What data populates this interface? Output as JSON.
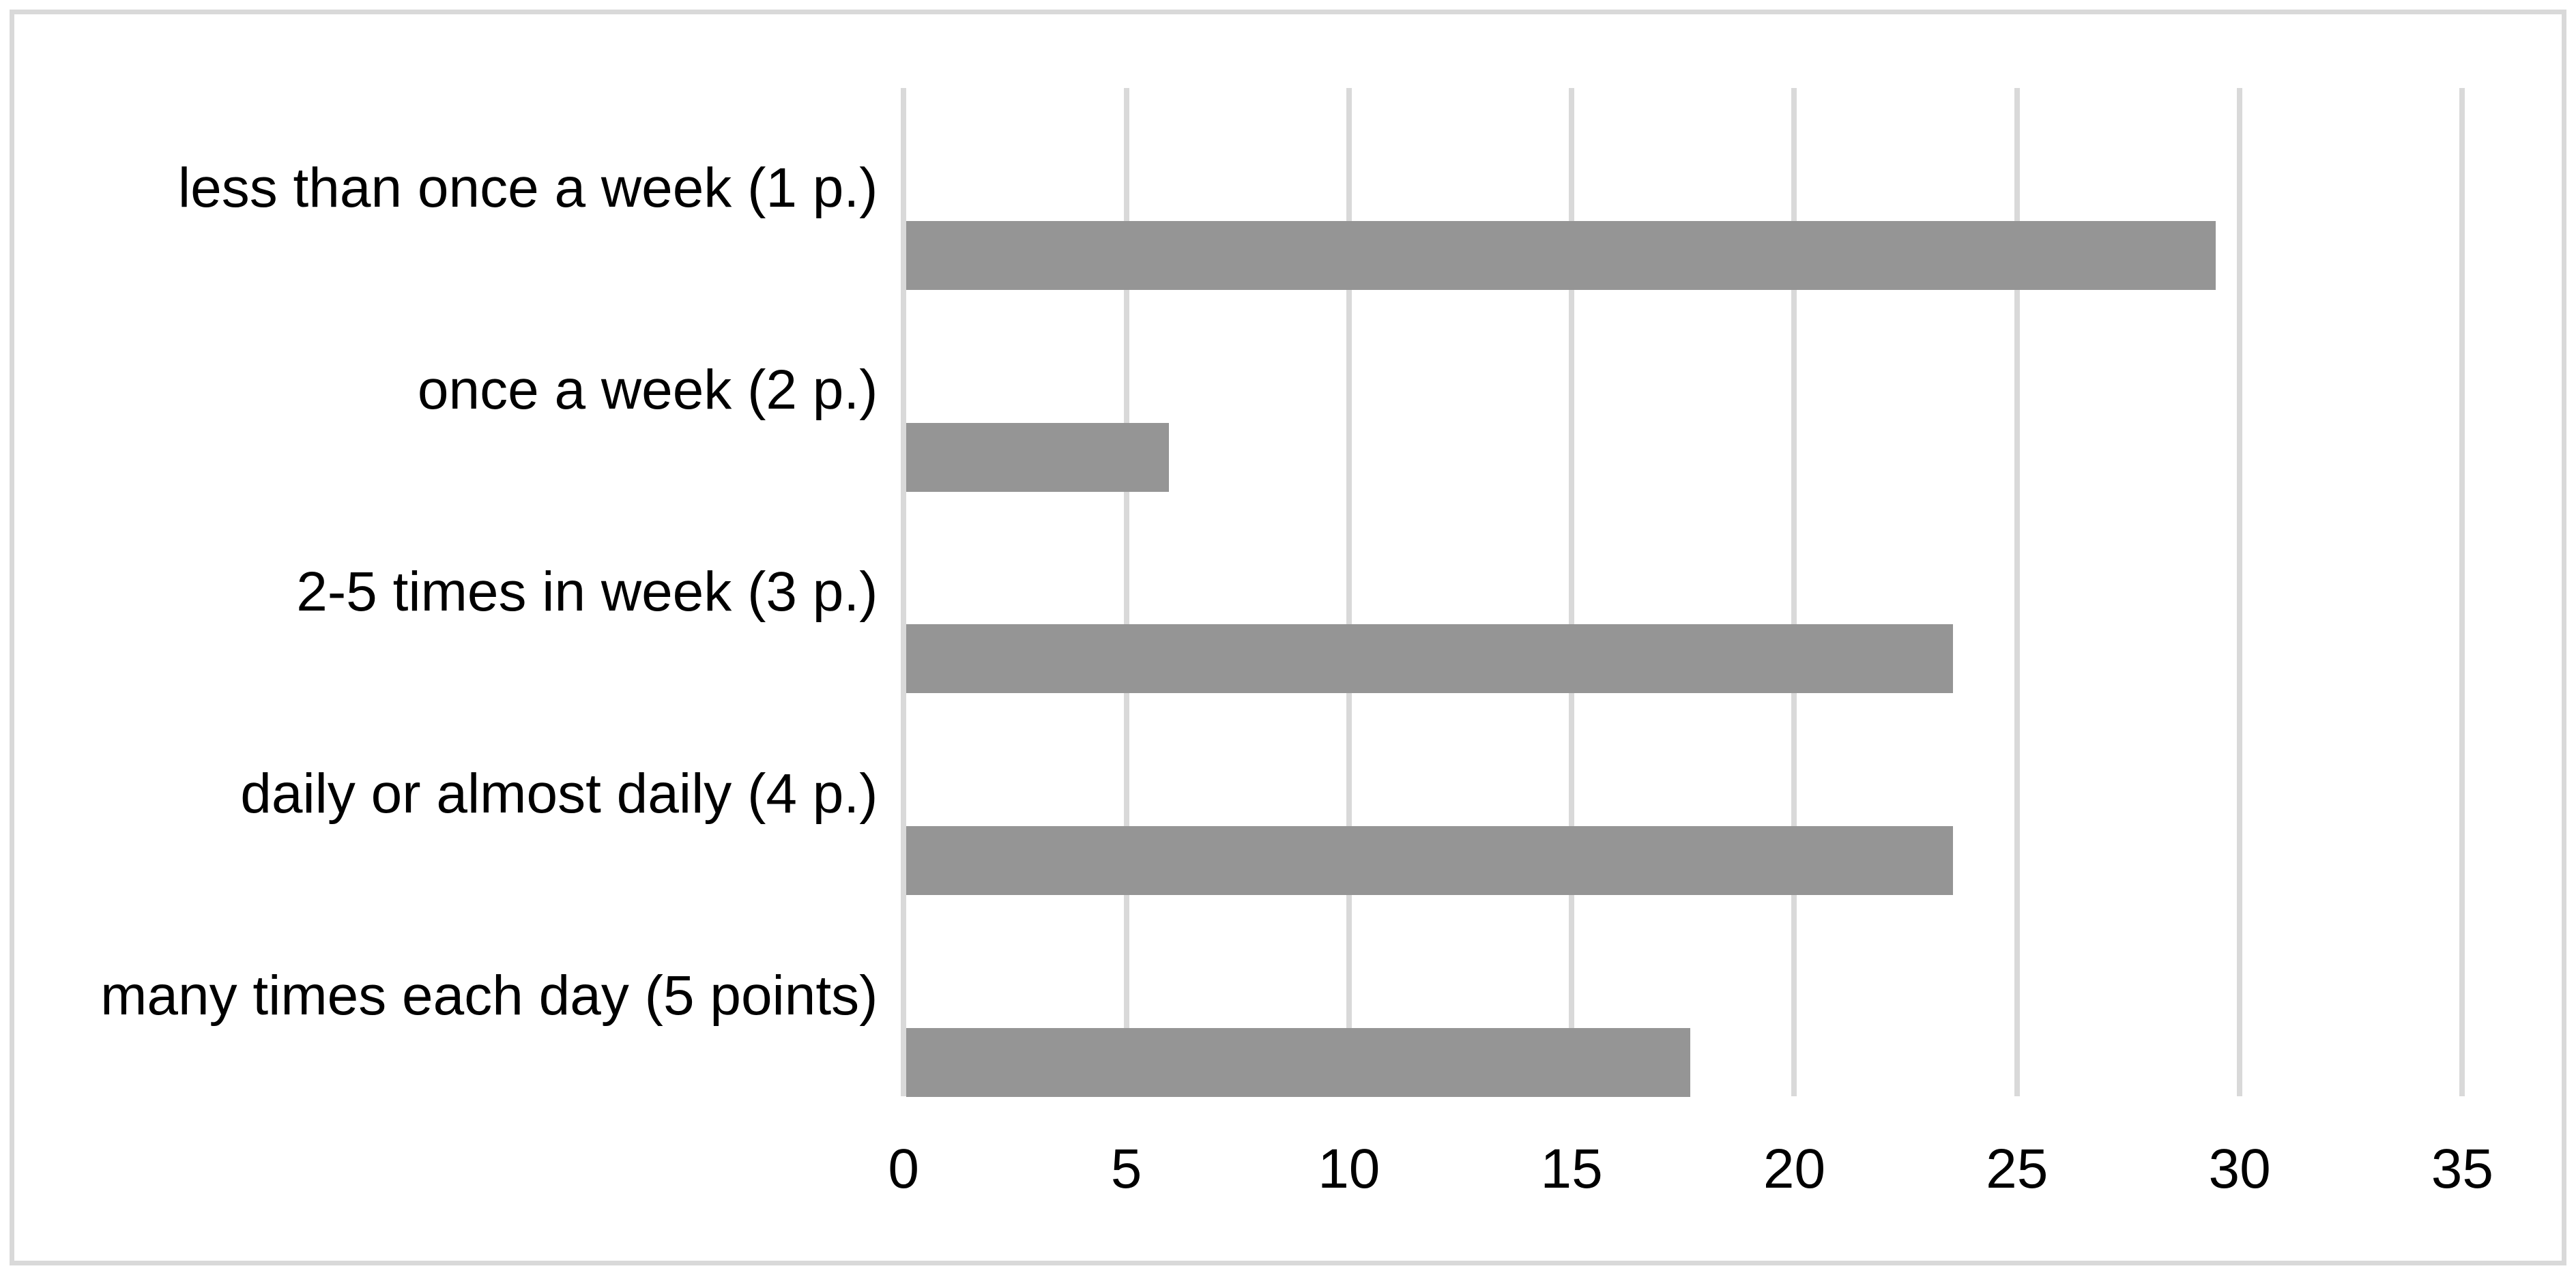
{
  "chart_data": {
    "type": "bar",
    "orientation": "horizontal",
    "title": "",
    "xlabel": "",
    "ylabel": "",
    "categories": [
      "less than once a week (1 p.)",
      "once a week (2 p.)",
      "2-5 times in week (3 p.)",
      "daily or almost daily (4 p.)",
      "many times each day (5 points)"
    ],
    "values": [
      29.4,
      5.9,
      23.5,
      23.5,
      17.6
    ],
    "x_ticks": [
      0,
      5,
      10,
      15,
      20,
      25,
      30,
      35
    ],
    "xlim": [
      0,
      35
    ],
    "grid": "vertical-major-gridlines",
    "legend": "none",
    "colors": {
      "bar": "#959595",
      "gridline": "#d9d9d9",
      "axis_line": "#d9d9d9",
      "frame_border": "#d9d9d9",
      "background": "#ffffff",
      "text": "#000000"
    }
  }
}
